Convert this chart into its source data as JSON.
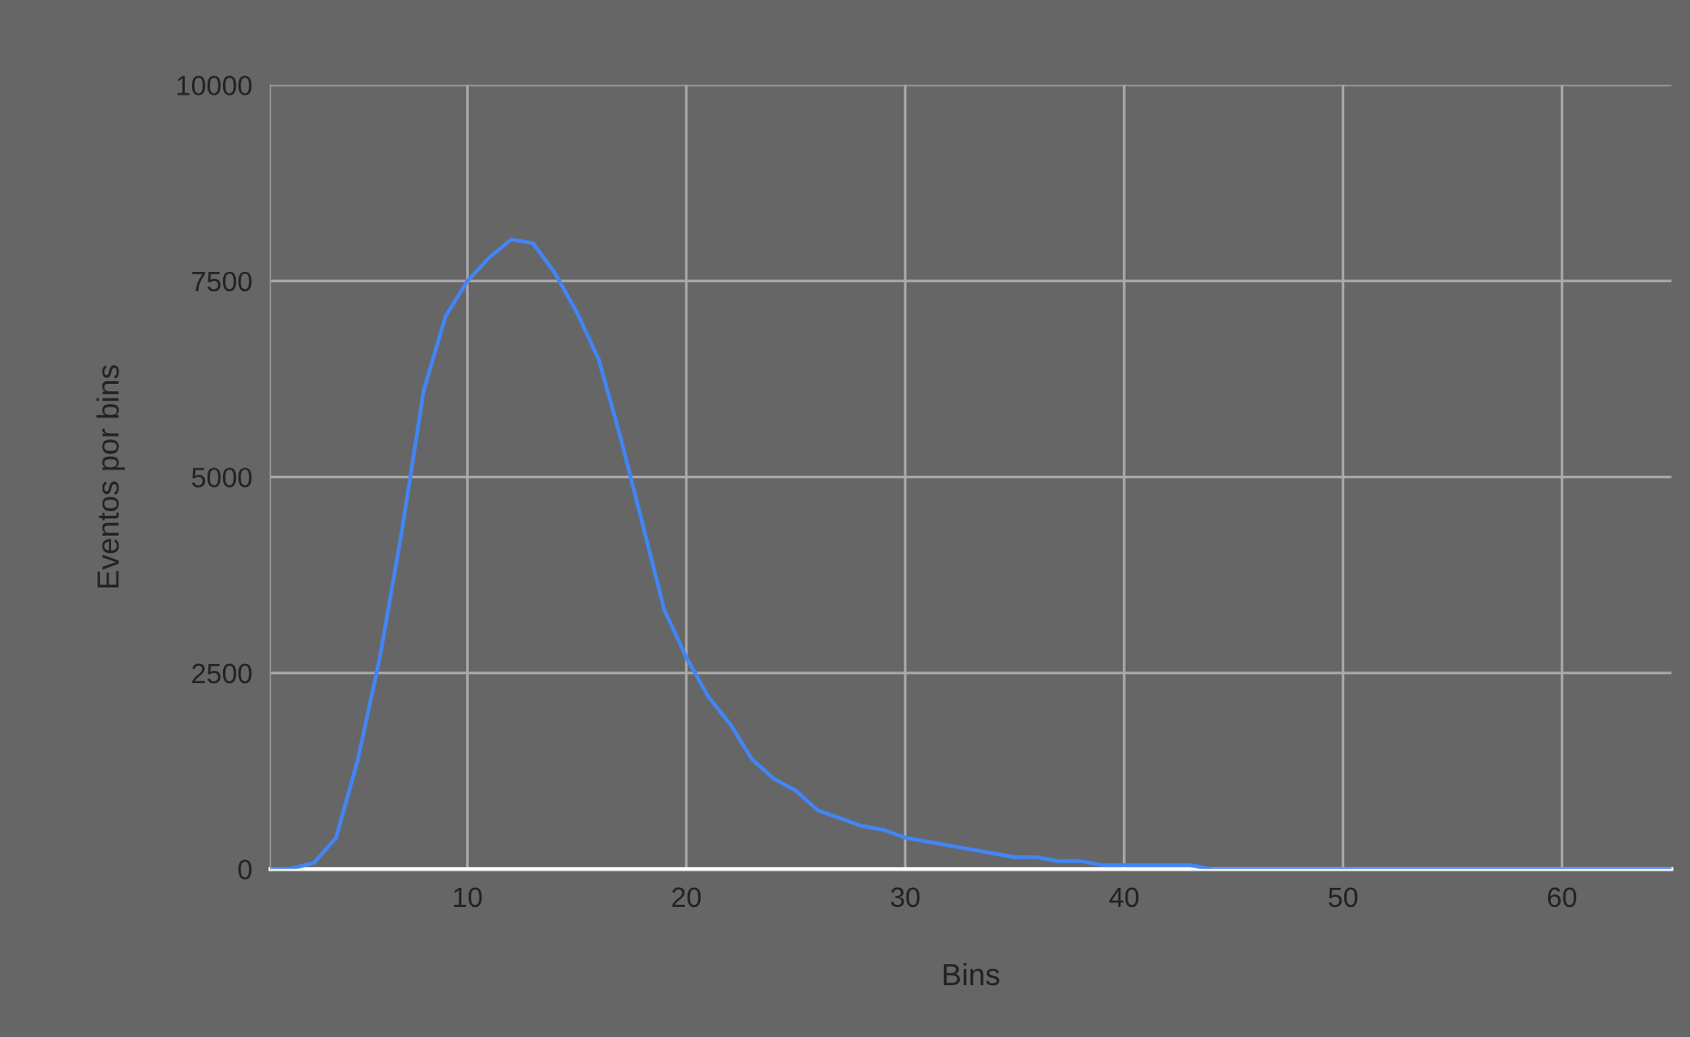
{
  "chart_data": {
    "type": "line",
    "xlabel": "Bins",
    "ylabel": "Eventos por bins",
    "x": [
      1,
      2,
      3,
      4,
      5,
      6,
      7,
      8,
      9,
      10,
      11,
      12,
      13,
      14,
      15,
      16,
      17,
      18,
      19,
      20,
      21,
      22,
      23,
      24,
      25,
      26,
      27,
      28,
      29,
      30,
      31,
      32,
      33,
      34,
      35,
      36,
      37,
      38,
      39,
      40,
      41,
      42,
      43,
      44,
      50,
      55,
      60,
      65
    ],
    "series": [
      {
        "color": "#4285f4",
        "values": [
          0,
          10,
          80,
          400,
          1400,
          2700,
          4300,
          6100,
          7050,
          7500,
          7800,
          8030,
          7980,
          7600,
          7100,
          6500,
          5500,
          4400,
          3300,
          2700,
          2200,
          1850,
          1400,
          1150,
          1000,
          750,
          650,
          550,
          500,
          400,
          350,
          300,
          250,
          200,
          150,
          150,
          100,
          100,
          50,
          50,
          50,
          50,
          50,
          0,
          0,
          0,
          0,
          0
        ]
      }
    ],
    "xlim": [
      1,
      65
    ],
    "xticks": [
      10,
      20,
      30,
      40,
      50,
      60
    ],
    "ylim": [
      0,
      10000
    ],
    "yticks": [
      0,
      2500,
      5000,
      7500,
      10000
    ],
    "grid": true,
    "marker": "none",
    "line_style": "solid",
    "legend": false
  }
}
